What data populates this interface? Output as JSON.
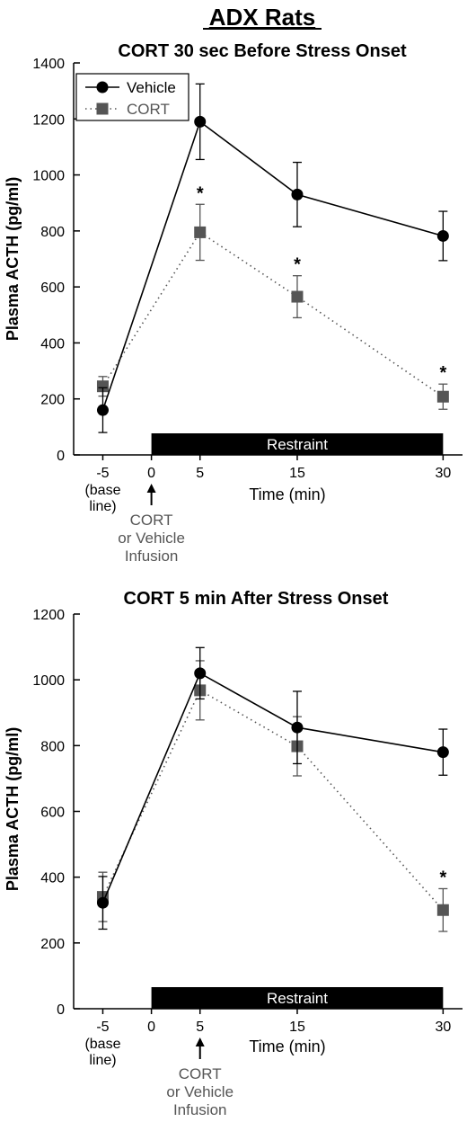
{
  "figure_title": "ADX Rats",
  "chart_data": [
    {
      "type": "line",
      "title": "CORT 30 sec Before Stress Onset",
      "xlabel": "Time (min)",
      "ylabel": "Plasma ACTH (pg/ml)",
      "ylim": [
        0,
        1400
      ],
      "yticks": [
        0,
        200,
        400,
        600,
        800,
        1000,
        1200,
        1400
      ],
      "xlim": [
        -8,
        32
      ],
      "x": [
        -5,
        5,
        15,
        30
      ],
      "xtick_labels": [
        "-5",
        "0",
        "5",
        "15",
        "30"
      ],
      "xtick_values": [
        -5,
        0,
        5,
        15,
        30
      ],
      "baseline_label": [
        "(base",
        "line)"
      ],
      "bar_label": "Restraint",
      "bar_range": [
        0,
        30
      ],
      "arrow_at": 0,
      "arrow_label": [
        "CORT",
        "or Vehicle",
        "Infusion"
      ],
      "legend": "top-left",
      "series": [
        {
          "name": "Vehicle",
          "marker": "circle",
          "line": "solid",
          "color": "#000000",
          "values": [
            160,
            1190,
            930,
            782
          ],
          "errors": [
            80,
            135,
            115,
            88
          ]
        },
        {
          "name": "CORT",
          "marker": "square",
          "line": "dotted",
          "color": "#555555",
          "values": [
            245,
            795,
            565,
            208
          ],
          "errors": [
            35,
            100,
            75,
            45
          ],
          "significant": [
            false,
            true,
            true,
            true
          ]
        }
      ],
      "significance_marker": "*"
    },
    {
      "type": "line",
      "title": "CORT 5 min After Stress Onset",
      "xlabel": "Time (min)",
      "ylabel": "Plasma ACTH (pg/ml)",
      "ylim": [
        0,
        1200
      ],
      "yticks": [
        0,
        200,
        400,
        600,
        800,
        1000,
        1200
      ],
      "xlim": [
        -8,
        32
      ],
      "x": [
        -5,
        5,
        15,
        30
      ],
      "xtick_labels": [
        "-5",
        "0",
        "5",
        "15",
        "30"
      ],
      "xtick_values": [
        -5,
        0,
        5,
        15,
        30
      ],
      "baseline_label": [
        "(base",
        "line)"
      ],
      "bar_label": "Restraint",
      "bar_range": [
        0,
        30
      ],
      "arrow_at": 5,
      "arrow_label": [
        "CORT",
        "or Vehicle",
        "Infusion"
      ],
      "series": [
        {
          "name": "Vehicle",
          "marker": "circle",
          "line": "solid",
          "color": "#000000",
          "values": [
            322,
            1020,
            855,
            780
          ],
          "errors": [
            80,
            78,
            110,
            70
          ]
        },
        {
          "name": "CORT",
          "marker": "square",
          "line": "dotted",
          "color": "#555555",
          "values": [
            340,
            968,
            798,
            300
          ],
          "errors": [
            75,
            90,
            90,
            65
          ],
          "significant": [
            false,
            false,
            false,
            true
          ]
        }
      ],
      "significance_marker": "*"
    }
  ]
}
